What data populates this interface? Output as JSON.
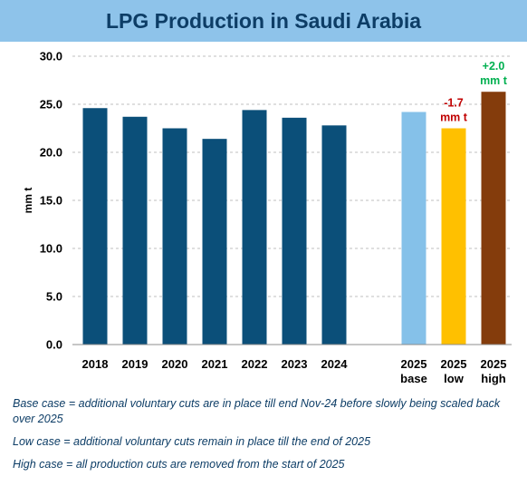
{
  "chart_data": {
    "type": "bar",
    "title": "LPG Production in Saudi Arabia",
    "ylabel": "mm t",
    "ylim": [
      0,
      30
    ],
    "yticks": [
      "0.0",
      "5.0",
      "10.0",
      "15.0",
      "20.0",
      "25.0",
      "30.0"
    ],
    "grid": true,
    "bars": [
      {
        "label": [
          "2018"
        ],
        "value": 24.6,
        "color": "#0b4f79"
      },
      {
        "label": [
          "2019"
        ],
        "value": 23.7,
        "color": "#0b4f79"
      },
      {
        "label": [
          "2020"
        ],
        "value": 22.5,
        "color": "#0b4f79"
      },
      {
        "label": [
          "2021"
        ],
        "value": 21.4,
        "color": "#0b4f79"
      },
      {
        "label": [
          "2022"
        ],
        "value": 24.4,
        "color": "#0b4f79"
      },
      {
        "label": [
          "2023"
        ],
        "value": 23.6,
        "color": "#0b4f79"
      },
      {
        "label": [
          "2024"
        ],
        "value": 22.8,
        "color": "#0b4f79"
      },
      {
        "label": [
          "2025",
          "base"
        ],
        "value": 24.2,
        "color": "#85c1e9"
      },
      {
        "label": [
          "2025",
          "low"
        ],
        "value": 22.5,
        "color": "#ffc000",
        "annotation": [
          "-1.7",
          "mm t"
        ],
        "annotation_color": "#c00000"
      },
      {
        "label": [
          "2025",
          "high"
        ],
        "value": 26.3,
        "color": "#843c0c",
        "annotation": [
          "+2.0",
          "mm t"
        ],
        "annotation_color": "#00b050"
      }
    ]
  },
  "notes": [
    "Base case = additional voluntary cuts are in place till end Nov-24 before slowly being scaled back over 2025",
    "Low case =  additional voluntary cuts remain in place till the end of 2025",
    "High case = all production cuts are removed from the start of 2025"
  ]
}
